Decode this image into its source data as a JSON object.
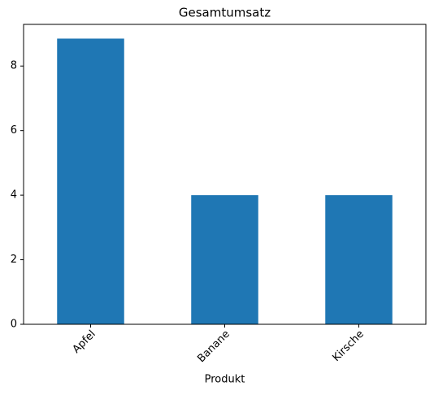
{
  "chart_data": {
    "type": "bar",
    "title": "Gesamtumsatz",
    "x_label": "Produkt",
    "categories": [
      "Apfel",
      "Banane",
      "Kirsche"
    ],
    "values": [
      8.85,
      4.0,
      4.0
    ],
    "color": "#1f77b4",
    "ylim": [
      0,
      9.29
    ],
    "yticks": [
      0,
      2,
      4,
      6,
      8
    ],
    "grid": false
  }
}
